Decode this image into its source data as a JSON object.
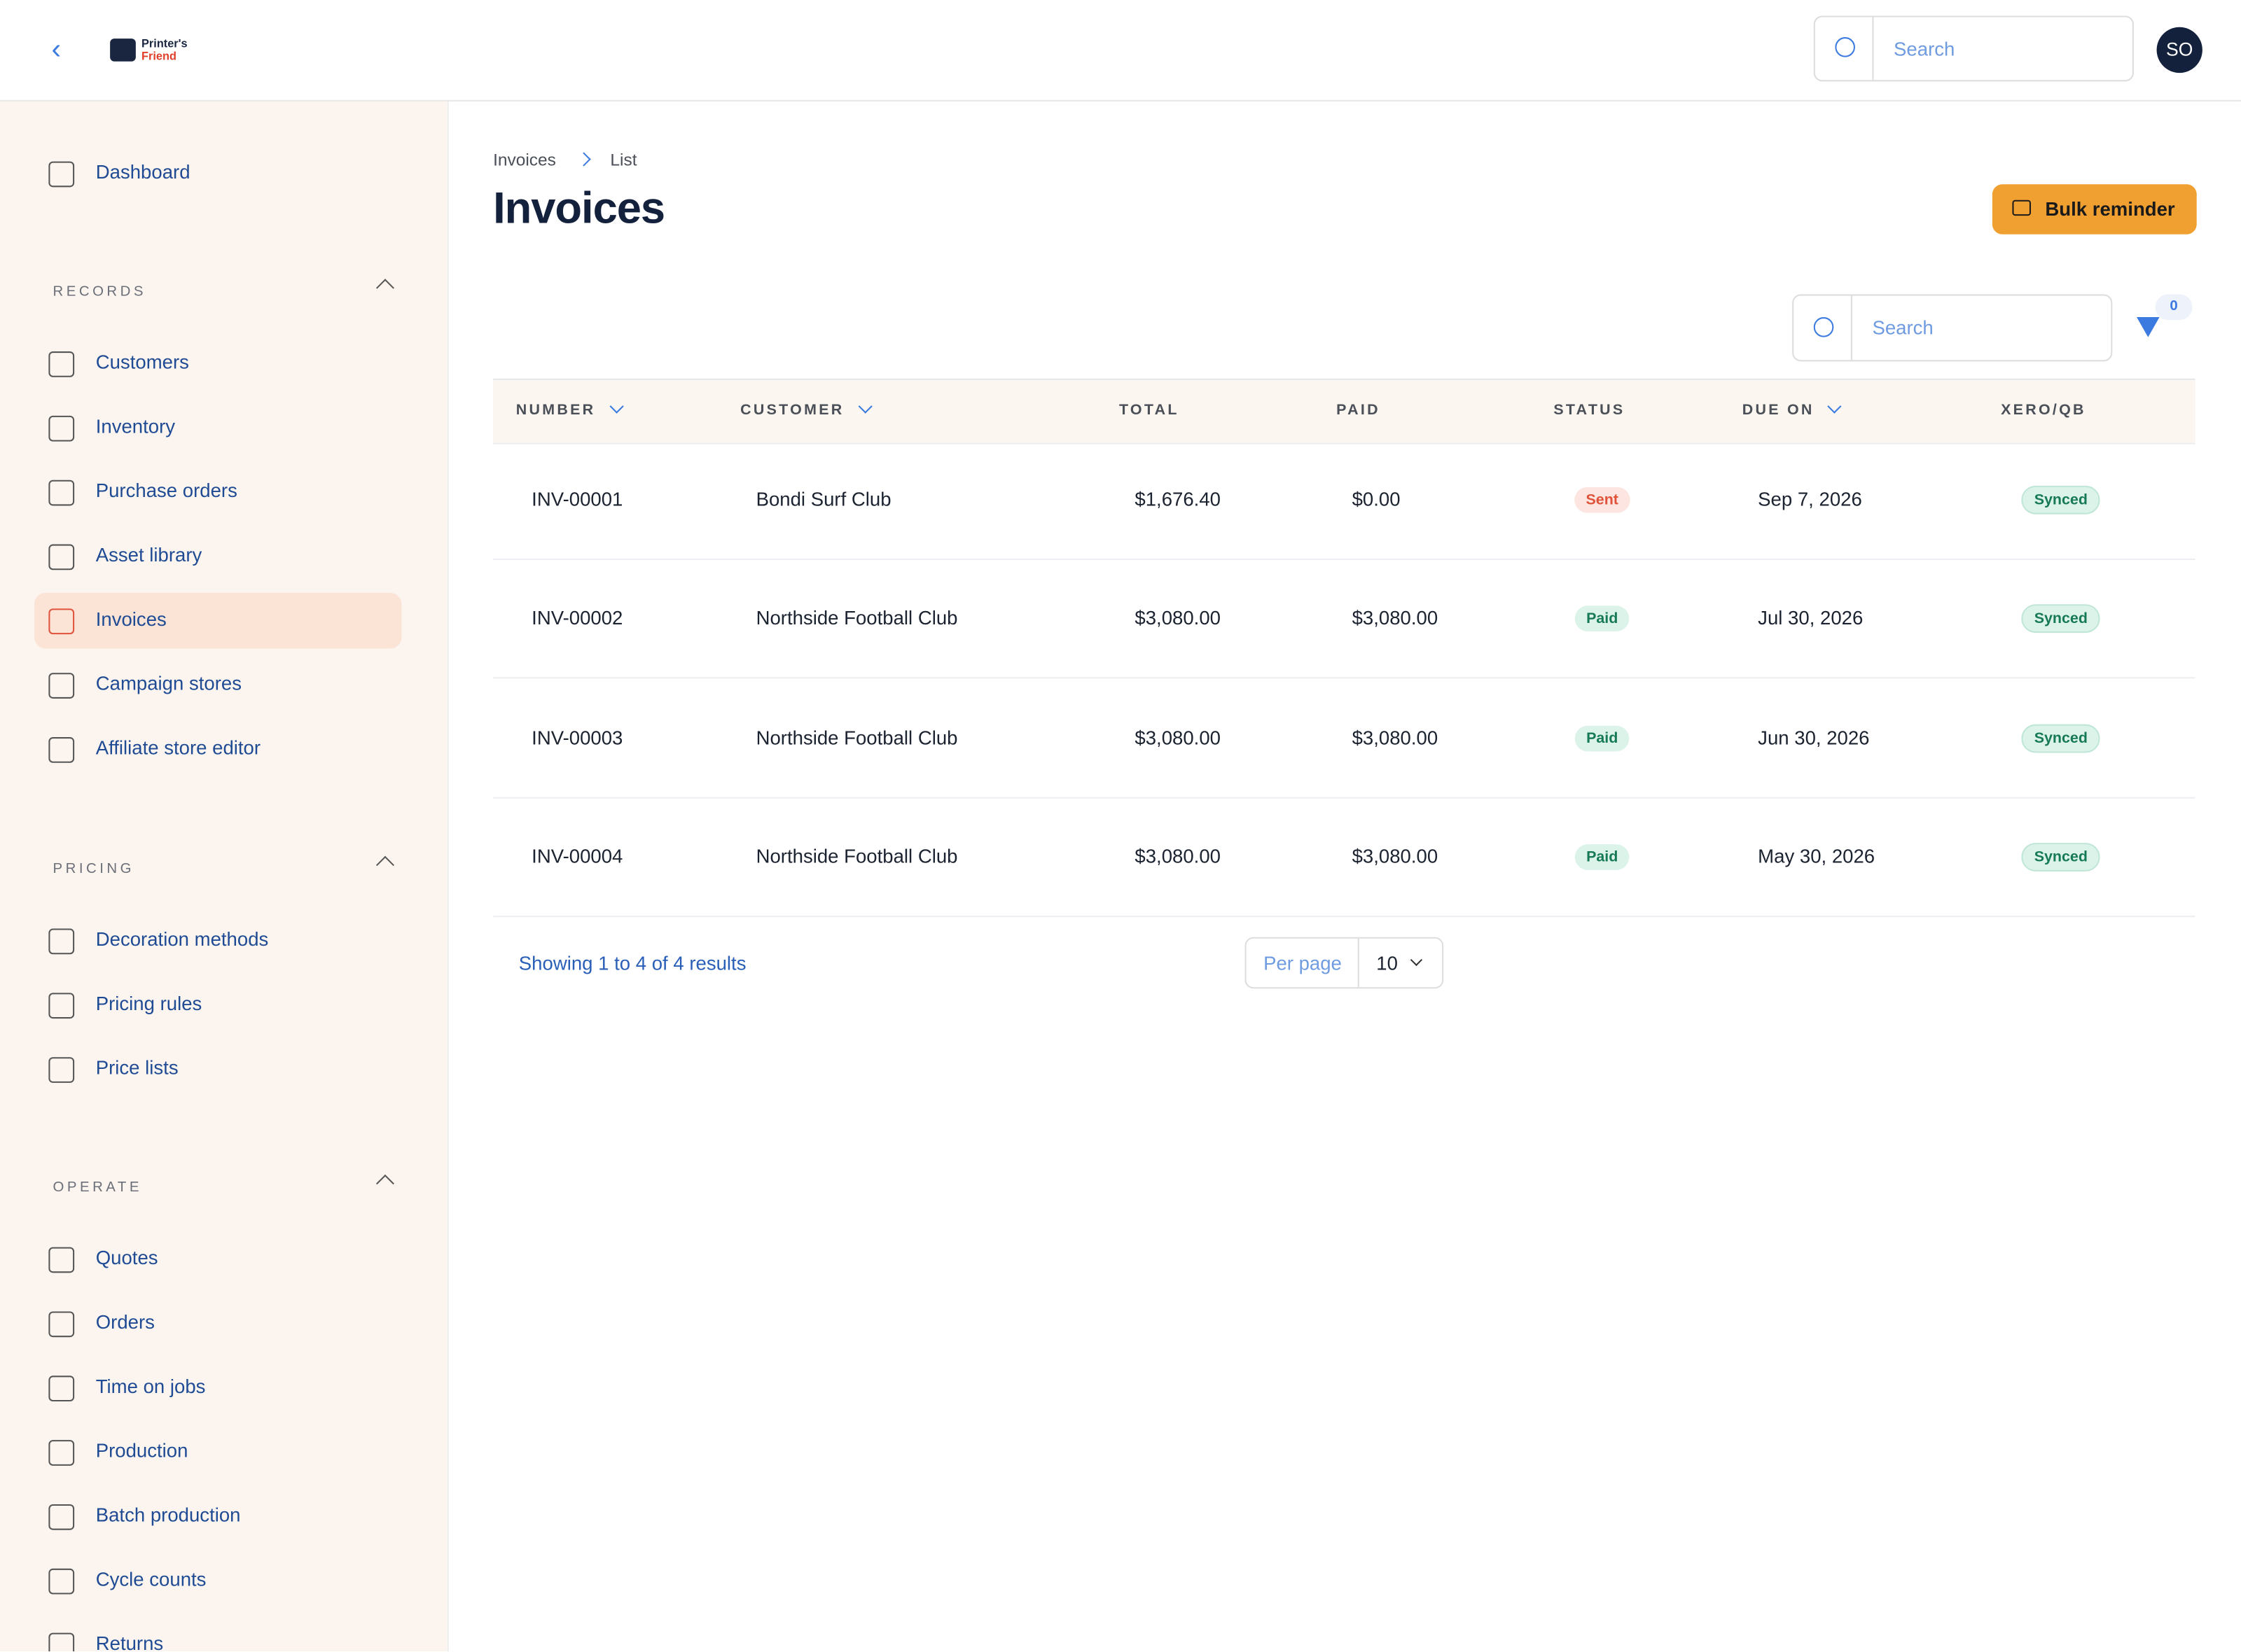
{
  "header": {
    "logo": [
      "Printer's",
      "Friend"
    ],
    "search_placeholder": "Search",
    "avatar": "SO"
  },
  "sidebar": {
    "top": [
      "Dashboard"
    ],
    "active": "Invoices",
    "sections": [
      {
        "title": "RECORDS",
        "items": [
          "Customers",
          "Inventory",
          "Purchase orders",
          "Asset library",
          "Invoices",
          "Campaign stores",
          "Affiliate store editor"
        ]
      },
      {
        "title": "PRICING",
        "items": [
          "Decoration methods",
          "Pricing rules",
          "Price lists"
        ]
      },
      {
        "title": "OPERATE",
        "items": [
          "Quotes",
          "Orders",
          "Time on jobs",
          "Production",
          "Batch production",
          "Cycle counts",
          "Returns"
        ]
      }
    ]
  },
  "breadcrumb": [
    "Invoices",
    "List"
  ],
  "title": "Invoices",
  "action": "Bulk reminder",
  "table_search_placeholder": "Search",
  "filter_count": 0,
  "table": {
    "columns": [
      {
        "label": "NUMBER",
        "sortable": true
      },
      {
        "label": "CUSTOMER",
        "sortable": true
      },
      {
        "label": "TOTAL",
        "sortable": false
      },
      {
        "label": "PAID",
        "sortable": false
      },
      {
        "label": "STATUS",
        "sortable": false
      },
      {
        "label": "DUE ON",
        "sortable": true
      },
      {
        "label": "XERO/QB",
        "sortable": false
      }
    ],
    "rows": [
      {
        "number": "INV-00001",
        "customer": "Bondi Surf Club",
        "total": "$1,676.40",
        "paid": "$0.00",
        "status": {
          "label": "Sent",
          "color": "#e0533a",
          "bg": "#fde6e1"
        },
        "due": "Sep 7, 2026",
        "sync": {
          "label": "Synced",
          "color": "#177a57",
          "bg": "#dcf3ea"
        }
      },
      {
        "number": "INV-00002",
        "customer": "Northside Football Club",
        "total": "$3,080.00",
        "paid": "$3,080.00",
        "status": {
          "label": "Paid",
          "color": "#177a57",
          "bg": "#dcf3ea"
        },
        "due": "Jul 30, 2026",
        "sync": {
          "label": "Synced",
          "color": "#177a57",
          "bg": "#dcf3ea"
        }
      },
      {
        "number": "INV-00003",
        "customer": "Northside Football Club",
        "total": "$3,080.00",
        "paid": "$3,080.00",
        "status": {
          "label": "Paid",
          "color": "#177a57",
          "bg": "#dcf3ea"
        },
        "due": "Jun 30, 2026",
        "sync": {
          "label": "Synced",
          "color": "#177a57",
          "bg": "#dcf3ea"
        }
      },
      {
        "number": "INV-00004",
        "customer": "Northside Football Club",
        "total": "$3,080.00",
        "paid": "$3,080.00",
        "status": {
          "label": "Paid",
          "color": "#177a57",
          "bg": "#dcf3ea"
        },
        "due": "May 30, 2026",
        "sync": {
          "label": "Synced",
          "color": "#177a57",
          "bg": "#dcf3ea"
        }
      }
    ]
  },
  "footer": {
    "summary": "Showing 1 to 4 of 4 results",
    "per_page_label": "Per page",
    "per_page": 10
  }
}
